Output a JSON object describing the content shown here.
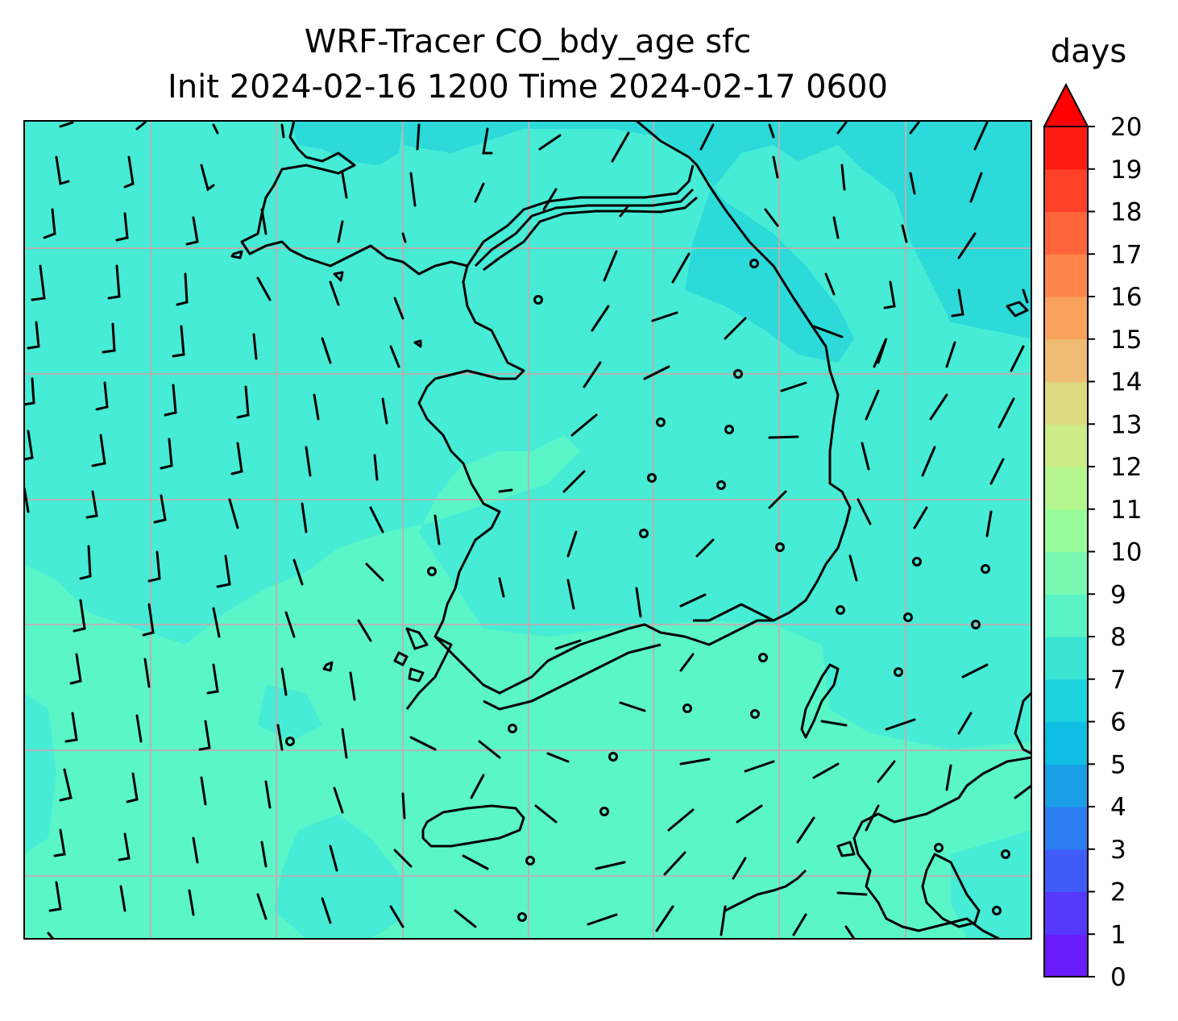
{
  "title": {
    "line1": "WRF-Tracer CO_bdy_age sfc",
    "line2": "Init 2024-02-16 1200 Time 2024-02-17 0600"
  },
  "colorbar": {
    "label": "days",
    "ticks": [
      "0",
      "1",
      "2",
      "3",
      "4",
      "5",
      "6",
      "7",
      "8",
      "9",
      "10",
      "11",
      "12",
      "13",
      "14",
      "15",
      "16",
      "17",
      "18",
      "19",
      "20"
    ],
    "extend": "max",
    "colors": [
      "#6a1cfc",
      "#5538fc",
      "#3f5cf8",
      "#2c7ff0",
      "#1a9ee8",
      "#10bde3",
      "#1cd2dc",
      "#3ae4d3",
      "#58f2c6",
      "#79f9b2",
      "#98fc9a",
      "#b5f78e",
      "#cdeb87",
      "#ddd980",
      "#eebc74",
      "#f9a25c",
      "#ff8548",
      "#ff653a",
      "#ff4228",
      "#ff1c13"
    ],
    "extend_color": "#ff0000"
  },
  "map": {
    "dominant_value_range_days": [
      6,
      9
    ],
    "gridlines": true,
    "features": [
      "coastlines",
      "wind barbs"
    ]
  }
}
